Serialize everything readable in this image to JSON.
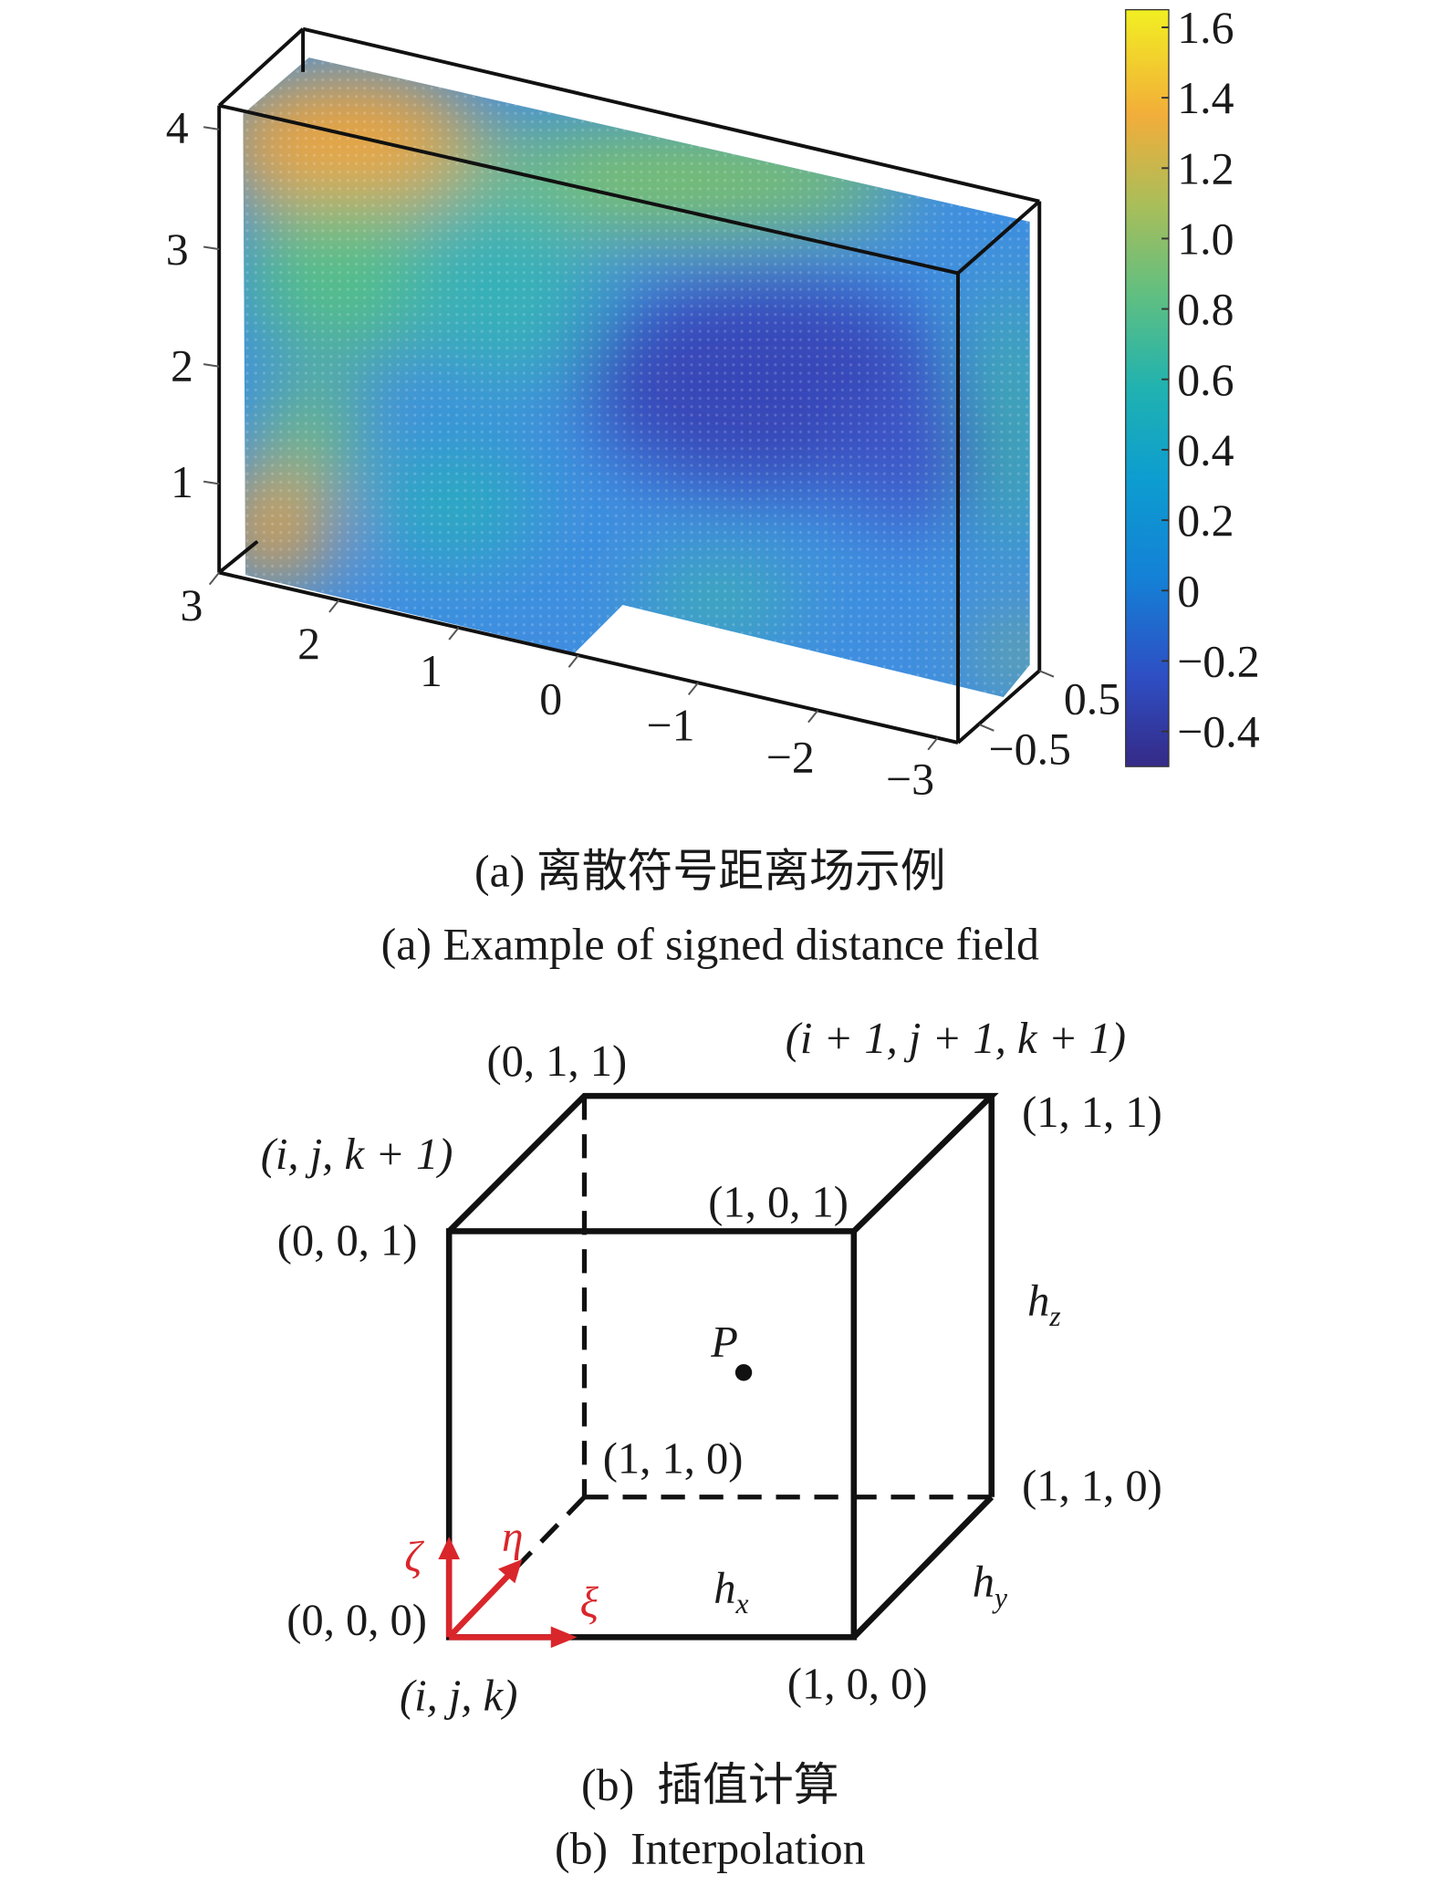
{
  "chart_data": {
    "type": "scatter",
    "projection": "3d",
    "colormap": "parula",
    "color_range": [
      -0.5,
      1.65
    ],
    "colorbar_ticks": [
      "1.6",
      "1.4",
      "1.2",
      "1.0",
      "0.8",
      "0.6",
      "0.4",
      "0.2",
      "0",
      "−0.2",
      "−0.4"
    ],
    "x_ticks": [
      "3",
      "2",
      "1",
      "0",
      "−1",
      "−2",
      "−3"
    ],
    "y_ticks": [
      "0.5",
      "−0.5"
    ],
    "z_ticks": [
      "4",
      "3",
      "2",
      "1"
    ],
    "xlim": [
      -3.3,
      3.2
    ],
    "ylim": [
      -0.7,
      0.7
    ],
    "zlim": [
      0.3,
      4.3
    ],
    "colors": {
      "low": "#352a87",
      "mid": "#2eb7a4",
      "high": "#f9fb0e"
    }
  },
  "captions": {
    "a_cn": "(a) 离散符号距离场示例",
    "a_en": "(a) Example of signed distance field",
    "b_cn": "(b)  插值计算",
    "b_en": "(b)  Interpolation"
  },
  "cube": {
    "labels": {
      "v011": "(0, 1, 1)",
      "vijk1_top": "(i + 1, j + 1, k + 1)",
      "v111": "(1, 1, 1)",
      "vijk1": "(i, j, k + 1)",
      "v101": "(1, 0, 1)",
      "v001": "(0, 0, 1)",
      "v110_inner": "(1, 1, 0)",
      "v110": "(1, 1, 0)",
      "v000": "(0, 0, 0)",
      "vijk": "(i, j, k)",
      "v100": "(1, 0, 0)",
      "point": "P"
    },
    "spacings": {
      "hx": {
        "base": "h",
        "sub": "x"
      },
      "hy": {
        "base": "h",
        "sub": "y"
      },
      "hz": {
        "base": "h",
        "sub": "z"
      }
    },
    "local_axes": {
      "zeta": "ζ",
      "eta": "η",
      "xi": "ξ"
    },
    "axis_color": "#d9262b"
  }
}
